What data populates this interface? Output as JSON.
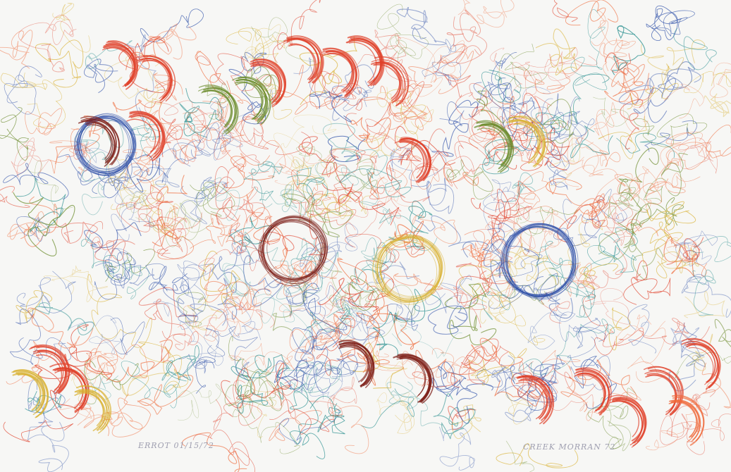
{
  "artwork": {
    "palette": {
      "paper": "#f7f7f5",
      "red": "#e0402a",
      "orange": "#ef6a3a",
      "blue": "#2d4fa8",
      "teal": "#1f8a8a",
      "green": "#6a8a2a",
      "yellow": "#d8b030",
      "darkred": "#7a1a12"
    },
    "motif": "dense looping scribbles with crescent strokes and circles",
    "signature_left": "ERROT 01/15/72",
    "signature_right": "CREEK MORRAN 72"
  }
}
